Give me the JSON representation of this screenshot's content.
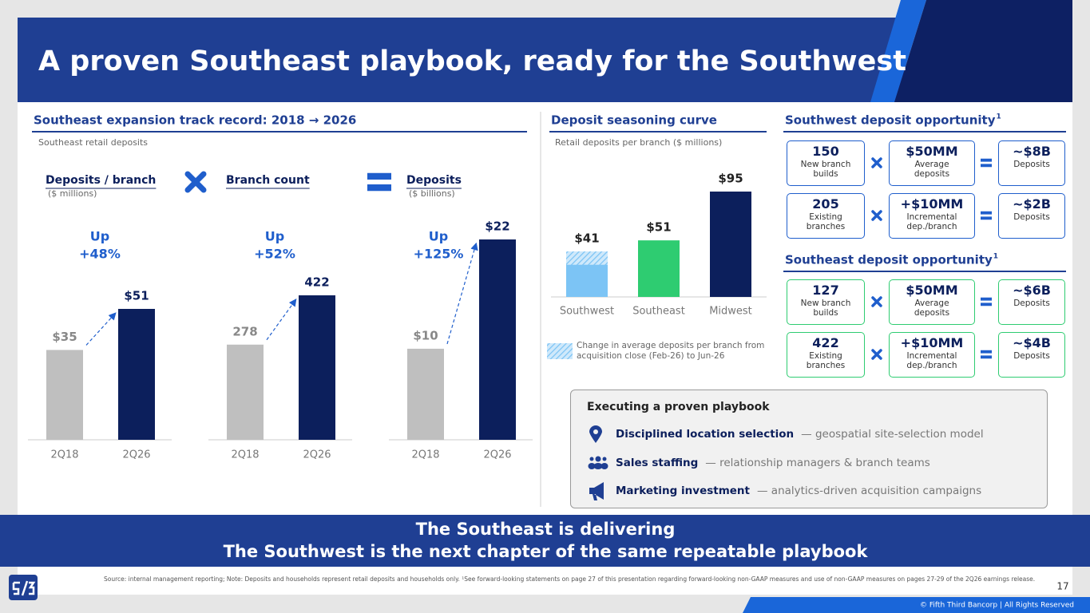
{
  "title": "A proven Southeast playbook, ready for the Southwest",
  "track_record": {
    "heading": "Southeast expansion track record: 2018 → 2026",
    "subheading": "Southeast retail deposits"
  },
  "chart_data": [
    {
      "type": "bar",
      "title": "Deposits / branch",
      "subtitle": "($ millions)",
      "annotation": [
        "Up",
        "+48%"
      ],
      "categories": [
        "2Q18",
        "2Q26"
      ],
      "values": [
        35,
        51
      ],
      "value_labels": [
        "$35",
        "$51"
      ],
      "colors": [
        "#bfbfbf",
        "#0c1f5c"
      ]
    },
    {
      "type": "bar",
      "title": "Branch count",
      "annotation": [
        "Up",
        "+52%"
      ],
      "categories": [
        "2Q18",
        "2Q26"
      ],
      "values": [
        278,
        422
      ],
      "colors": [
        "#bfbfbf",
        "#0c1f5c"
      ]
    },
    {
      "type": "bar",
      "title": "Deposits",
      "subtitle": "($ billions)",
      "annotation": [
        "Up",
        "+125%"
      ],
      "categories": [
        "2Q18",
        "2Q26"
      ],
      "values": [
        10,
        22
      ],
      "value_labels": [
        "$10",
        "$22"
      ],
      "colors": [
        "#bfbfbf",
        "#0c1f5c"
      ]
    },
    {
      "type": "bar",
      "title": "Deposit seasoning curve",
      "subtitle": "Retail deposits per branch ($ millions)",
      "categories": [
        "Southwest",
        "Southeast",
        "Midwest"
      ],
      "values": [
        41,
        51,
        95
      ],
      "value_labels": [
        "$41",
        "$51",
        "$95"
      ],
      "colors": [
        "#7cc4f5",
        "#2ecc71",
        "#0c1f5c"
      ],
      "change": {
        "name": "Change in average deposits per branch from acquisition close (Feb-26) to Jun-26",
        "values": [
          12,
          null,
          null
        ]
      }
    }
  ],
  "southwest": {
    "heading": "Southwest deposit opportunity",
    "footnote_mark": "1",
    "rows": [
      {
        "count": "150",
        "count_sub": "New branch builds",
        "per": "$50MM",
        "per_sub": "Average deposits",
        "total": "~$8B",
        "total_sub": "Deposits"
      },
      {
        "count": "205",
        "count_sub": "Existing branches",
        "per": "+$10MM",
        "per_sub": "Incremental dep./branch",
        "total": "~$2B",
        "total_sub": "Deposits"
      }
    ]
  },
  "southeast": {
    "heading": "Southeast deposit opportunity",
    "footnote_mark": "1",
    "rows": [
      {
        "count": "127",
        "count_sub": "New branch builds",
        "per": "$50MM",
        "per_sub": "Average deposits",
        "total": "~$6B",
        "total_sub": "Deposits"
      },
      {
        "count": "422",
        "count_sub": "Existing branches",
        "per": "+$10MM",
        "per_sub": "Incremental dep./branch",
        "total": "~$4B",
        "total_sub": "Deposits"
      }
    ]
  },
  "playbook": {
    "title": "Executing a proven playbook",
    "items": [
      {
        "label": "Disciplined location selection",
        "desc": "— geospatial site-selection model"
      },
      {
        "label": "Sales staffing",
        "desc": "— relationship managers & branch teams"
      },
      {
        "label": "Marketing investment",
        "desc": "— analytics-driven acquisition campaigns"
      }
    ]
  },
  "banner": [
    "The Southeast is delivering",
    "The Southwest is the next chapter of the same repeatable playbook"
  ],
  "footer": {
    "source": "Source: internal management reporting; Note: Deposits and households represent retail deposits and households only. ¹See forward-looking statements on page 27 of this presentation regarding forward-looking non-GAAP measures and use of non-GAAP measures on pages 27-29 of the 2Q26 earnings release.",
    "page": "17",
    "copyright": "© Fifth Third Bancorp | All Rights Reserved"
  }
}
